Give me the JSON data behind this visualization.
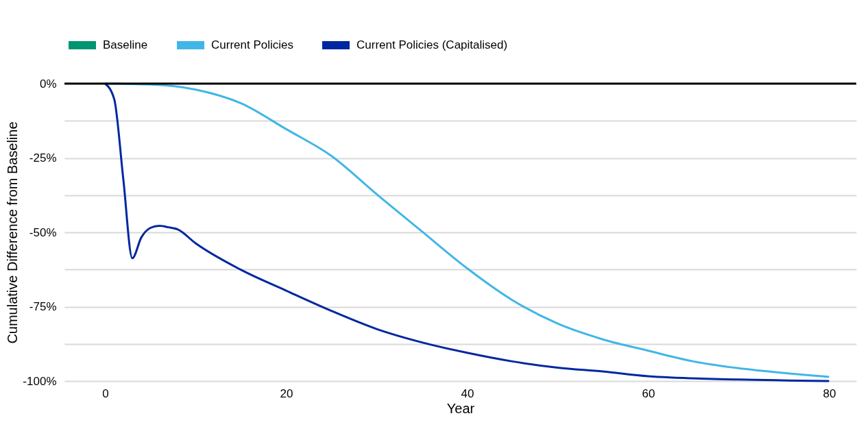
{
  "chart_data": {
    "type": "line",
    "xlabel": "Year",
    "ylabel": "Cumulative Difference from Baseline",
    "xlim": [
      -4.5,
      83
    ],
    "xticks": [
      0,
      20,
      40,
      60,
      80
    ],
    "ylim": [
      -100,
      0
    ],
    "yticks": [
      {
        "value": -100,
        "label": "-100%"
      },
      {
        "value": -87.5,
        "label": null
      },
      {
        "value": -75,
        "label": "-75%"
      },
      {
        "value": -62.5,
        "label": null
      },
      {
        "value": -50,
        "label": "-50%"
      },
      {
        "value": -37.5,
        "label": null
      },
      {
        "value": -25,
        "label": "-25%"
      },
      {
        "value": -12.5,
        "label": null
      },
      {
        "value": 0,
        "label": "0%"
      }
    ],
    "grid": "y",
    "legend": "top left",
    "line_style": "solid",
    "marker": "none",
    "ref_lines": [
      {
        "axis": "y",
        "value": 0,
        "color": "#000000"
      }
    ],
    "series": [
      {
        "name": "Baseline",
        "color": "#009473"
      },
      {
        "name": "Current Policies",
        "color": "#41b6e6",
        "x": [
          0,
          5,
          10,
          15,
          20,
          25,
          30,
          35,
          40,
          45,
          50,
          55,
          60,
          65,
          70,
          75,
          80
        ],
        "values": [
          0,
          -0.3,
          -2,
          -6.6,
          -15.3,
          -24.3,
          -37.2,
          -49.7,
          -62.1,
          -72.8,
          -80.7,
          -86,
          -89.8,
          -93.4,
          -95.7,
          -97.3,
          -98.6
        ]
      },
      {
        "name": "Current Policies (Capitalised)",
        "color": "#0027a0",
        "x": [
          0,
          1,
          2,
          3,
          4,
          5,
          6,
          7,
          8,
          10,
          15,
          20,
          25,
          30,
          35,
          40,
          45,
          50,
          55,
          60,
          70,
          80
        ],
        "values": [
          0,
          -5.2,
          -32,
          -58.7,
          -51.7,
          -48.5,
          -47.8,
          -48.3,
          -49,
          -53.7,
          -62.6,
          -69.6,
          -76.4,
          -82.5,
          -87,
          -90.5,
          -93.4,
          -95.5,
          -96.8,
          -98.4,
          -99.5,
          -100
        ]
      }
    ]
  }
}
